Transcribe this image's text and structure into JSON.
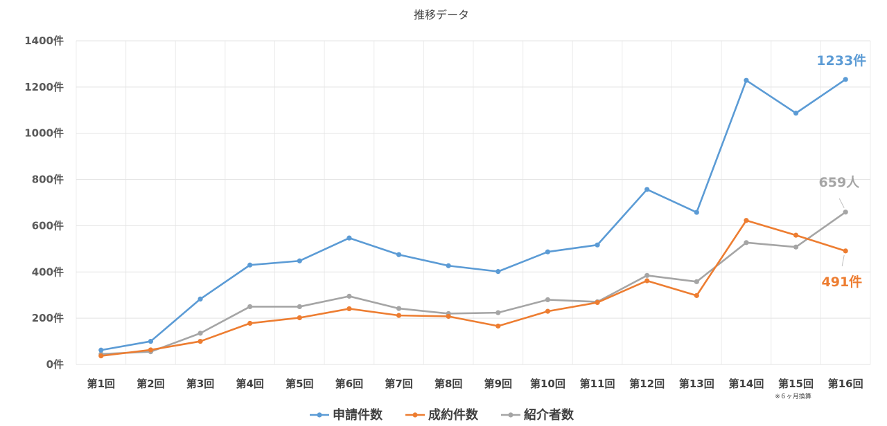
{
  "chart_data": {
    "type": "line",
    "title": "推移データ",
    "categories": [
      "第1回",
      "第2回",
      "第3回",
      "第4回",
      "第5回",
      "第6回",
      "第7回",
      "第8回",
      "第9回",
      "第10回",
      "第11回",
      "第12回",
      "第13回",
      "第14回",
      "第15回",
      "第16回"
    ],
    "y_ticks": [
      "0件",
      "200件",
      "400件",
      "600件",
      "800件",
      "1000件",
      "1200件",
      "1400件"
    ],
    "ylim": [
      0,
      1400
    ],
    "grid": true,
    "legend_position": "bottom",
    "series": [
      {
        "name": "申請件数",
        "color": "#5b9bd5",
        "values": [
          62,
          100,
          283,
          430,
          448,
          547,
          475,
          427,
          402,
          487,
          517,
          757,
          658,
          1229,
          1087,
          1233
        ]
      },
      {
        "name": "成約件数",
        "color": "#ed7d31",
        "values": [
          37,
          63,
          100,
          178,
          202,
          241,
          212,
          208,
          166,
          230,
          268,
          362,
          298,
          623,
          559,
          491
        ]
      },
      {
        "name": "紹介者数",
        "color": "#a5a5a5",
        "values": [
          45,
          55,
          135,
          250,
          250,
          295,
          242,
          220,
          224,
          280,
          271,
          385,
          358,
          527,
          508,
          659
        ]
      }
    ],
    "annotations": {
      "series0_end": "1233件",
      "series1_end": "491件",
      "series2_end": "659人",
      "footnote": "※６ヶ月換算"
    }
  }
}
